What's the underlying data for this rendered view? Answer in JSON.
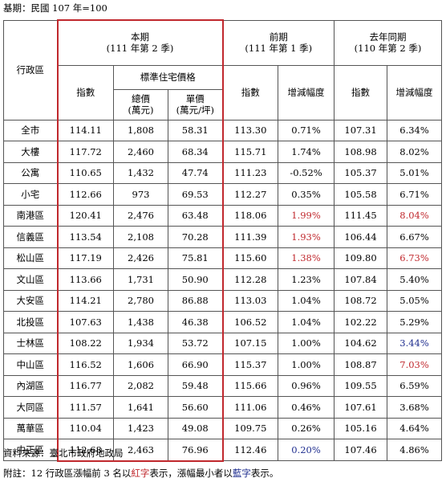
{
  "base_note": "基期：民國 107 年=100",
  "header": {
    "district": "行政區",
    "current_title": "本期",
    "current_sub": "(111 年第 2 季)",
    "prev_title": "前期",
    "prev_sub": "(111 年第 1 季)",
    "yoy_title": "去年同期",
    "yoy_sub": "(110 年第 2 季)",
    "index": "指數",
    "std_price": "標準住宅價格",
    "total_price": "總價",
    "total_unit": "(萬元)",
    "unit_price": "單價",
    "unit_unit": "(萬元/坪)",
    "prev_index": "指數",
    "prev_change": "增減幅度",
    "yoy_index": "指數",
    "yoy_change": "增減幅度"
  },
  "rows": [
    {
      "name": "全市",
      "index": "114.11",
      "total": "1,808",
      "unit": "58.31",
      "prev_index": "113.30",
      "prev_change": "0.71%",
      "yoy_index": "107.31",
      "yoy_change": "6.34%",
      "pc_color": "",
      "yc_color": ""
    },
    {
      "name": "大樓",
      "index": "117.72",
      "total": "2,460",
      "unit": "68.34",
      "prev_index": "115.71",
      "prev_change": "1.74%",
      "yoy_index": "108.98",
      "yoy_change": "8.02%",
      "pc_color": "",
      "yc_color": ""
    },
    {
      "name": "公寓",
      "index": "110.65",
      "total": "1,432",
      "unit": "47.74",
      "prev_index": "111.23",
      "prev_change": "-0.52%",
      "yoy_index": "105.37",
      "yoy_change": "5.01%",
      "pc_color": "",
      "yc_color": ""
    },
    {
      "name": "小宅",
      "index": "112.66",
      "total": "973",
      "unit": "69.53",
      "prev_index": "112.27",
      "prev_change": "0.35%",
      "yoy_index": "105.58",
      "yoy_change": "6.71%",
      "pc_color": "",
      "yc_color": ""
    },
    {
      "name": "南港區",
      "index": "120.41",
      "total": "2,476",
      "unit": "63.48",
      "prev_index": "118.06",
      "prev_change": "1.99%",
      "yoy_index": "111.45",
      "yoy_change": "8.04%",
      "pc_color": "red",
      "yc_color": "red"
    },
    {
      "name": "信義區",
      "index": "113.54",
      "total": "2,108",
      "unit": "70.28",
      "prev_index": "111.39",
      "prev_change": "1.93%",
      "yoy_index": "106.44",
      "yoy_change": "6.67%",
      "pc_color": "red",
      "yc_color": ""
    },
    {
      "name": "松山區",
      "index": "117.19",
      "total": "2,426",
      "unit": "75.81",
      "prev_index": "115.60",
      "prev_change": "1.38%",
      "yoy_index": "109.80",
      "yoy_change": "6.73%",
      "pc_color": "red",
      "yc_color": "red"
    },
    {
      "name": "文山區",
      "index": "113.66",
      "total": "1,731",
      "unit": "50.90",
      "prev_index": "112.28",
      "prev_change": "1.23%",
      "yoy_index": "107.84",
      "yoy_change": "5.40%",
      "pc_color": "",
      "yc_color": ""
    },
    {
      "name": "大安區",
      "index": "114.21",
      "total": "2,780",
      "unit": "86.88",
      "prev_index": "113.03",
      "prev_change": "1.04%",
      "yoy_index": "108.72",
      "yoy_change": "5.05%",
      "pc_color": "",
      "yc_color": ""
    },
    {
      "name": "北投區",
      "index": "107.63",
      "total": "1,438",
      "unit": "46.38",
      "prev_index": "106.52",
      "prev_change": "1.04%",
      "yoy_index": "102.22",
      "yoy_change": "5.29%",
      "pc_color": "",
      "yc_color": ""
    },
    {
      "name": "士林區",
      "index": "108.22",
      "total": "1,934",
      "unit": "53.72",
      "prev_index": "107.15",
      "prev_change": "1.00%",
      "yoy_index": "104.62",
      "yoy_change": "3.44%",
      "pc_color": "",
      "yc_color": "blue"
    },
    {
      "name": "中山區",
      "index": "116.52",
      "total": "1,606",
      "unit": "66.90",
      "prev_index": "115.37",
      "prev_change": "1.00%",
      "yoy_index": "108.87",
      "yoy_change": "7.03%",
      "pc_color": "",
      "yc_color": "red"
    },
    {
      "name": "內湖區",
      "index": "116.77",
      "total": "2,082",
      "unit": "59.48",
      "prev_index": "115.66",
      "prev_change": "0.96%",
      "yoy_index": "109.55",
      "yoy_change": "6.59%",
      "pc_color": "",
      "yc_color": ""
    },
    {
      "name": "大同區",
      "index": "111.57",
      "total": "1,641",
      "unit": "56.60",
      "prev_index": "111.06",
      "prev_change": "0.46%",
      "yoy_index": "107.61",
      "yoy_change": "3.68%",
      "pc_color": "",
      "yc_color": ""
    },
    {
      "name": "萬華區",
      "index": "110.04",
      "total": "1,423",
      "unit": "49.08",
      "prev_index": "109.75",
      "prev_change": "0.26%",
      "yoy_index": "105.16",
      "yoy_change": "4.64%",
      "pc_color": "",
      "yc_color": ""
    },
    {
      "name": "中正區",
      "index": "112.68",
      "total": "2,463",
      "unit": "76.96",
      "prev_index": "112.46",
      "prev_change": "0.20%",
      "yoy_index": "107.46",
      "yoy_change": "4.86%",
      "pc_color": "blue",
      "yc_color": ""
    }
  ],
  "source": "資料來源：臺北市政府地政局",
  "note": {
    "prefix": "附註：12 行政區漲幅前 3 名以",
    "red_word": "紅字",
    "middle": "表示，漲幅最小者以",
    "blue_word": "藍字",
    "suffix": "表示。"
  },
  "colors": {
    "highlight_red": "#c0282d",
    "highlight_blue": "#1f2e8f"
  }
}
